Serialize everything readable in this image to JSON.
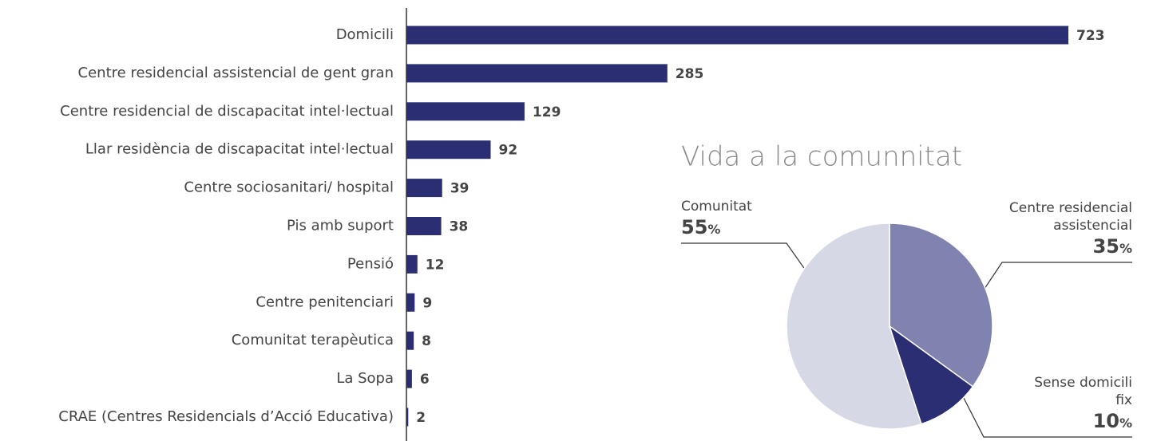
{
  "chart_data": [
    {
      "type": "barh",
      "categories": [
        "Domicili",
        "Centre residencial assistencial de gent gran",
        "Centre residencial de discapacitat intel·lectual",
        "Llar residència de discapacitat intel·lectual",
        "Centre sociosanitari/ hospital",
        "Pis amb suport",
        "Pensió",
        "Centre penitenciari",
        "Comunitat terapèutica",
        "La Sopa",
        "CRAE (Centres Residencials d’Acció Educativa)"
      ],
      "values": [
        723,
        285,
        129,
        92,
        39,
        38,
        12,
        9,
        8,
        6,
        2
      ],
      "color": "#2b2e72"
    },
    {
      "type": "pie",
      "title": "Vida a la comunnitat",
      "categories": [
        "Centre residencial assistencial",
        "Sense domicili fix",
        "Comunitat"
      ],
      "values": [
        35,
        10,
        55
      ],
      "value_labels": [
        "35%",
        "10%",
        "55%"
      ],
      "colors": [
        "#8083b0",
        "#2b2e72",
        "#d6d8e6"
      ]
    }
  ]
}
